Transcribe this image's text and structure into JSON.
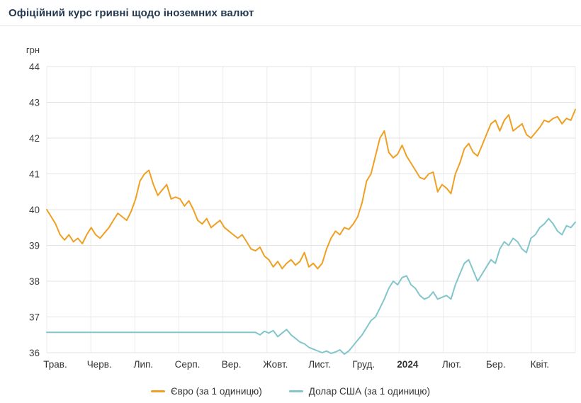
{
  "title": "Офіційний курс гривні щодо іноземних валют",
  "y_axis_unit": "грн",
  "colors": {
    "euro": "#efa023",
    "usd": "#82c6cb",
    "grid": "#e3e3e3",
    "grid_vertical": "#ececec",
    "axis_text": "#3d3d3d",
    "title_text": "#243950"
  },
  "legend": [
    {
      "label": "Євро (за 1 одиницю)",
      "color": "#efa023"
    },
    {
      "label": "Долар США (за 1 одиницю)",
      "color": "#82c6cb"
    }
  ],
  "chart_data": {
    "type": "line",
    "title": "Офіційний курс гривні щодо іноземних валют",
    "xlabel": "",
    "ylabel": "грн",
    "ylim": [
      36,
      44
    ],
    "yticks": [
      36,
      37,
      38,
      39,
      40,
      41,
      42,
      43,
      44
    ],
    "xticklabels": [
      "Трав.",
      "Черв.",
      "Лип.",
      "Серп.",
      "Вер.",
      "Жовт.",
      "Лист.",
      "Груд.",
      "2024",
      "Лют.",
      "Бер.",
      "Квіт."
    ],
    "bold_tick": "2024",
    "grid": true,
    "legend_position": "bottom",
    "series": [
      {
        "name": "Євро (за 1 одиницю)",
        "color": "#efa023",
        "values": [
          40.0,
          39.8,
          39.6,
          39.3,
          39.15,
          39.3,
          39.1,
          39.2,
          39.05,
          39.3,
          39.5,
          39.3,
          39.2,
          39.35,
          39.5,
          39.7,
          39.9,
          39.8,
          39.7,
          39.95,
          40.3,
          40.8,
          41.0,
          41.1,
          40.7,
          40.4,
          40.55,
          40.7,
          40.3,
          40.35,
          40.3,
          40.1,
          40.25,
          40.0,
          39.7,
          39.6,
          39.75,
          39.5,
          39.6,
          39.7,
          39.5,
          39.4,
          39.3,
          39.2,
          39.3,
          39.1,
          38.9,
          38.85,
          38.95,
          38.7,
          38.6,
          38.4,
          38.55,
          38.35,
          38.5,
          38.6,
          38.45,
          38.55,
          38.8,
          38.4,
          38.5,
          38.35,
          38.5,
          38.9,
          39.2,
          39.4,
          39.3,
          39.5,
          39.45,
          39.6,
          39.8,
          40.2,
          40.8,
          41.0,
          41.5,
          42.0,
          42.2,
          41.6,
          41.45,
          41.55,
          41.8,
          41.5,
          41.3,
          41.1,
          40.9,
          40.85,
          41.0,
          41.05,
          40.5,
          40.7,
          40.6,
          40.45,
          41.0,
          41.3,
          41.7,
          41.85,
          41.6,
          41.5,
          41.8,
          42.1,
          42.4,
          42.5,
          42.2,
          42.5,
          42.65,
          42.2,
          42.3,
          42.4,
          42.1,
          42.0,
          42.15,
          42.3,
          42.5,
          42.45,
          42.55,
          42.6,
          42.4,
          42.55,
          42.5,
          42.8
        ]
      },
      {
        "name": "Долар США (за 1 одиницю)",
        "color": "#82c6cb",
        "values": [
          36.57,
          36.57,
          36.57,
          36.57,
          36.57,
          36.57,
          36.57,
          36.57,
          36.57,
          36.57,
          36.57,
          36.57,
          36.57,
          36.57,
          36.57,
          36.57,
          36.57,
          36.57,
          36.57,
          36.57,
          36.57,
          36.57,
          36.57,
          36.57,
          36.57,
          36.57,
          36.57,
          36.57,
          36.57,
          36.57,
          36.57,
          36.57,
          36.57,
          36.57,
          36.57,
          36.57,
          36.57,
          36.57,
          36.57,
          36.57,
          36.57,
          36.57,
          36.57,
          36.57,
          36.57,
          36.57,
          36.57,
          36.57,
          36.5,
          36.6,
          36.55,
          36.62,
          36.45,
          36.55,
          36.65,
          36.5,
          36.4,
          36.3,
          36.25,
          36.15,
          36.1,
          36.05,
          36.0,
          36.05,
          35.98,
          36.02,
          36.08,
          35.96,
          36.05,
          36.2,
          36.35,
          36.5,
          36.7,
          36.9,
          37.0,
          37.25,
          37.5,
          37.8,
          38.0,
          37.9,
          38.1,
          38.15,
          37.9,
          37.8,
          37.6,
          37.5,
          37.55,
          37.7,
          37.5,
          37.55,
          37.6,
          37.5,
          37.9,
          38.2,
          38.5,
          38.6,
          38.3,
          38.0,
          38.2,
          38.4,
          38.6,
          38.5,
          38.9,
          39.1,
          39.0,
          39.2,
          39.1,
          38.9,
          38.8,
          39.2,
          39.3,
          39.5,
          39.6,
          39.75,
          39.6,
          39.4,
          39.3,
          39.55,
          39.5,
          39.65
        ]
      }
    ]
  }
}
